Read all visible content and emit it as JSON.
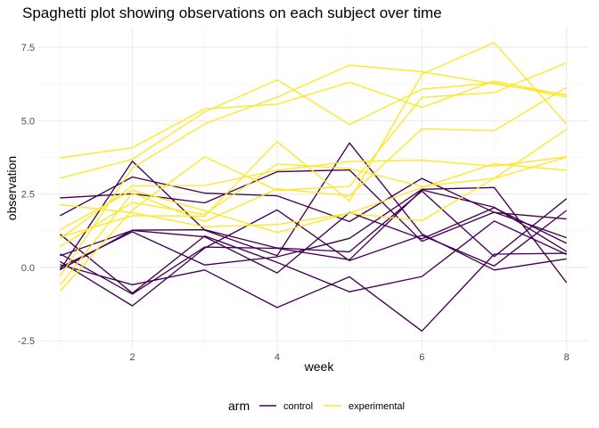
{
  "chart_data": {
    "type": "line",
    "title": "Spaghetti plot showing observations on each subject over time",
    "xlabel": "week",
    "ylabel": "observation",
    "xlim": [
      0.7,
      8.3
    ],
    "ylim": [
      -2.8,
      8.2
    ],
    "x_ticks": [
      2,
      4,
      6,
      8
    ],
    "x_tick_labels": [
      "2",
      "4",
      "6",
      "8"
    ],
    "y_ticks": [
      -2.5,
      0,
      2.5,
      5,
      7.5
    ],
    "y_tick_labels": [
      "-2.5",
      "0.0",
      "2.5",
      "5.0",
      "7.5"
    ],
    "grid": true,
    "legend": {
      "title": "arm",
      "placement": "bottom",
      "entries": [
        {
          "label": "control",
          "color": "#440154"
        },
        {
          "label": "experimental",
          "color": "#FDE725"
        }
      ]
    },
    "x": [
      1,
      2,
      3,
      4,
      5,
      6,
      7,
      8
    ],
    "series": [
      {
        "group": "control",
        "values": [
          0.2,
          -1.31,
          0.66,
          1.96,
          0.23,
          1.09,
          0.05,
          1.94
        ]
      },
      {
        "group": "control",
        "values": [
          1.13,
          -0.88,
          1.07,
          0.17,
          -0.83,
          -0.31,
          1.58,
          0.44
        ]
      },
      {
        "group": "control",
        "values": [
          0.0,
          1.21,
          0.08,
          0.36,
          0.99,
          2.66,
          2.72,
          -0.52
        ]
      },
      {
        "group": "control",
        "values": [
          0.4,
          1.26,
          1.04,
          -0.19,
          1.87,
          0.97,
          2.03,
          0.82
        ]
      },
      {
        "group": "control",
        "values": [
          0.09,
          -0.59,
          -0.09,
          -1.37,
          -0.32,
          -2.17,
          0.45,
          0.48
        ]
      },
      {
        "group": "control",
        "values": [
          2.37,
          2.51,
          2.2,
          3.26,
          3.32,
          0.89,
          1.88,
          1.01
        ]
      },
      {
        "group": "control",
        "values": [
          -0.09,
          3.62,
          1.27,
          0.4,
          4.24,
          1.14,
          -0.09,
          0.29
        ]
      },
      {
        "group": "control",
        "values": [
          -0.08,
          1.27,
          1.28,
          0.66,
          0.53,
          2.6,
          0.37,
          2.34
        ]
      },
      {
        "group": "control",
        "values": [
          0.46,
          -0.91,
          0.69,
          0.65,
          0.26,
          2.64,
          2.05,
          0.54
        ]
      },
      {
        "group": "control",
        "values": [
          1.76,
          3.08,
          2.53,
          2.44,
          1.56,
          3.03,
          1.87,
          1.65
        ]
      },
      {
        "group": "experimental",
        "values": [
          3.73,
          4.08,
          5.4,
          5.56,
          6.31,
          5.45,
          6.35,
          5.86
        ]
      },
      {
        "group": "experimental",
        "values": [
          -0.3,
          3.39,
          4.89,
          5.8,
          6.89,
          6.67,
          6.25,
          5.88
        ]
      },
      {
        "group": "experimental",
        "values": [
          1.28,
          2.63,
          1.93,
          1.19,
          1.85,
          2.72,
          3.53,
          3.31
        ]
      },
      {
        "group": "experimental",
        "values": [
          2.14,
          1.86,
          1.38,
          1.46,
          1.84,
          1.59,
          3.03,
          3.75
        ]
      },
      {
        "group": "experimental",
        "values": [
          -0.61,
          2.53,
          1.56,
          2.68,
          2.44,
          4.72,
          4.66,
          6.13
        ]
      },
      {
        "group": "experimental",
        "values": [
          -0.81,
          1.96,
          3.77,
          2.62,
          2.76,
          5.79,
          5.96,
          6.97
        ]
      },
      {
        "group": "experimental",
        "values": [
          1.03,
          1.76,
          1.75,
          4.29,
          2.26,
          6.58,
          7.66,
          4.88
        ]
      },
      {
        "group": "experimental",
        "values": [
          3.04,
          3.68,
          5.3,
          6.39,
          4.87,
          6.07,
          6.29,
          5.8
        ]
      },
      {
        "group": "experimental",
        "values": [
          0.71,
          2.21,
          1.8,
          3.52,
          3.37,
          2.76,
          3.03,
          4.71
        ]
      },
      {
        "group": "experimental",
        "values": [
          0.98,
          2.78,
          2.79,
          3.31,
          3.61,
          3.65,
          3.45,
          3.77
        ]
      }
    ]
  }
}
